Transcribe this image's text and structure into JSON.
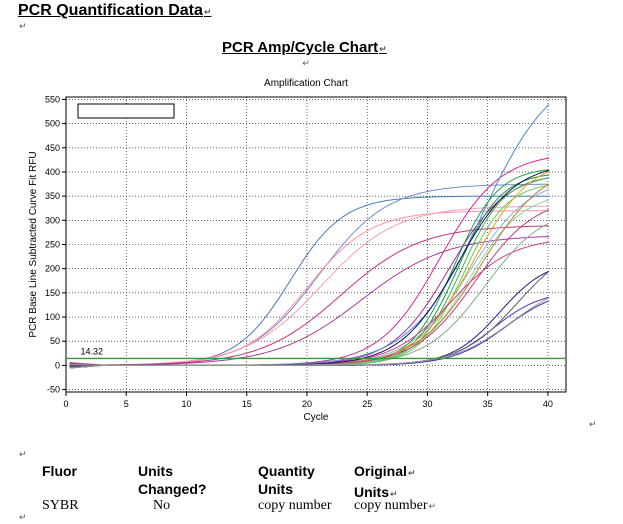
{
  "document": {
    "title": "PCR Quantification Data",
    "chart_heading": "PCR Amp/Cycle Chart"
  },
  "chart_data": {
    "type": "line",
    "title": "Amplification Chart",
    "xlabel": "Cycle",
    "ylabel": "PCR Base Line Subtracted Curve Fit RFU",
    "xlim": [
      0,
      41.5
    ],
    "ylim": [
      -55,
      555
    ],
    "xticks": [
      0,
      5,
      10,
      15,
      20,
      25,
      30,
      35,
      40
    ],
    "yticks": [
      -50,
      0,
      50,
      100,
      150,
      200,
      250,
      300,
      350,
      400,
      450,
      500,
      550
    ],
    "grid": true,
    "legend": "top-left (empty box)",
    "threshold": {
      "value": 14.32,
      "label": "14.32",
      "color": "#2ca02c"
    },
    "series": [
      {
        "color": "#4a7bb5",
        "midpoint": 18.6,
        "plateau": 350,
        "slope": 0.45
      },
      {
        "color": "#6f8fc8",
        "midpoint": 21.0,
        "plateau": 375,
        "slope": 0.35
      },
      {
        "color": "#ff8fa8",
        "midpoint": 20.0,
        "plateau": 320,
        "slope": 0.38
      },
      {
        "color": "#f2a0b8",
        "midpoint": 21.2,
        "plateau": 330,
        "slope": 0.32
      },
      {
        "color": "#c8327a",
        "midpoint": 22.8,
        "plateau": 290,
        "slope": 0.3
      },
      {
        "color": "#a83aa0",
        "midpoint": 24.5,
        "plateau": 270,
        "slope": 0.28
      },
      {
        "color": "#d4289c",
        "midpoint": 31.0,
        "plateau": 440,
        "slope": 0.4
      },
      {
        "color": "#b0289a",
        "midpoint": 31.8,
        "plateau": 400,
        "slope": 0.42
      },
      {
        "color": "#4a8ad0",
        "midpoint": 34.5,
        "plateau": 620,
        "slope": 0.34
      },
      {
        "color": "#8ab4e0",
        "midpoint": 33.5,
        "plateau": 390,
        "slope": 0.4
      },
      {
        "color": "#1a9a3a",
        "midpoint": 32.5,
        "plateau": 400,
        "slope": 0.55
      },
      {
        "color": "#3dbb4a",
        "midpoint": 32.8,
        "plateau": 395,
        "slope": 0.55
      },
      {
        "color": "#5ecf5e",
        "midpoint": 33.0,
        "plateau": 380,
        "slope": 0.55
      },
      {
        "color": "#20a050",
        "midpoint": 32.2,
        "plateau": 410,
        "slope": 0.55
      },
      {
        "color": "#8bd4a0",
        "midpoint": 33.5,
        "plateau": 360,
        "slope": 0.45
      },
      {
        "color": "#e6a020",
        "midpoint": 33.8,
        "plateau": 430,
        "slope": 0.42
      },
      {
        "color": "#c08030",
        "midpoint": 34.5,
        "plateau": 420,
        "slope": 0.38
      },
      {
        "color": "#d23c8c",
        "midpoint": 32.0,
        "plateau": 265,
        "slope": 0.4
      },
      {
        "color": "#101060",
        "midpoint": 32.5,
        "plateau": 420,
        "slope": 0.42
      },
      {
        "color": "#202080",
        "midpoint": 36.0,
        "plateau": 220,
        "slope": 0.5
      },
      {
        "color": "#3a2ac0",
        "midpoint": 36.5,
        "plateau": 160,
        "slope": 0.45
      },
      {
        "color": "#5a30d0",
        "midpoint": 35.5,
        "plateau": 155,
        "slope": 0.5
      },
      {
        "color": "#606060",
        "midpoint": 37.5,
        "plateau": 260,
        "slope": 0.42
      },
      {
        "color": "#9a9a9a",
        "midpoint": 37.0,
        "plateau": 180,
        "slope": 0.4
      },
      {
        "color": "#c04080",
        "midpoint": 34.0,
        "plateau": 350,
        "slope": 0.4
      },
      {
        "color": "#80b080",
        "midpoint": 34.8,
        "plateau": 330,
        "slope": 0.4
      }
    ]
  },
  "table": {
    "headers": [
      {
        "line1": "Fluor",
        "line2": ""
      },
      {
        "line1": "Units",
        "line2": "Changed?"
      },
      {
        "line1": "Quantity",
        "line2": "Units"
      },
      {
        "line1": "Original",
        "line2": "Units"
      }
    ],
    "row": [
      "SYBR",
      "No",
      "copy number",
      "copy number"
    ]
  }
}
